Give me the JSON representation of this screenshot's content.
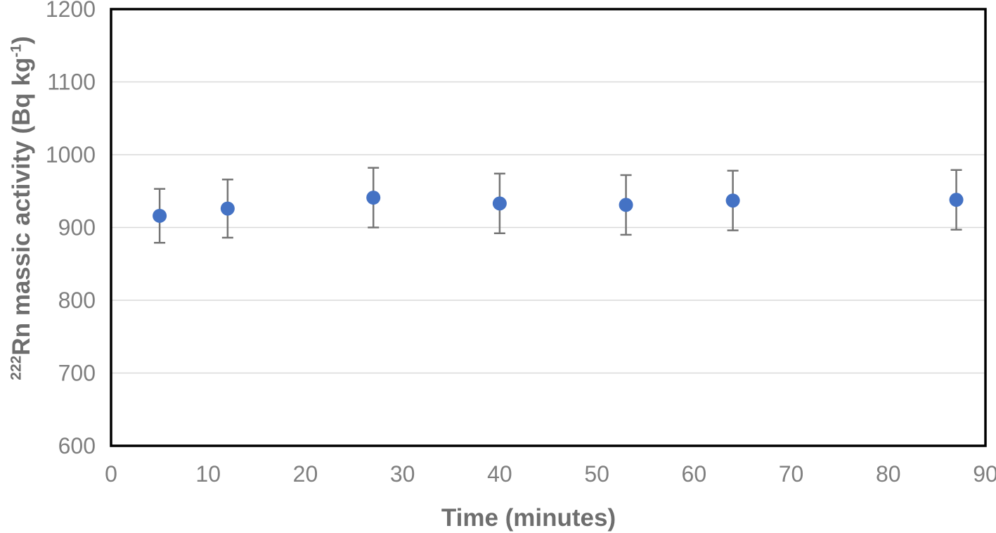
{
  "chart_data": {
    "type": "scatter",
    "title": "",
    "xlabel": "Time (minutes)",
    "ylabel": "²²²Rn massic activity (Bq kg⁻¹)",
    "ylabel_parts": {
      "isotope_mass": "222",
      "main": "Rn massic activity (Bq kg",
      "exponent": "-1",
      "close": ")"
    },
    "xlim": [
      0,
      90
    ],
    "ylim": [
      600,
      1200
    ],
    "x_ticks": [
      0,
      10,
      20,
      30,
      40,
      50,
      60,
      70,
      80,
      90
    ],
    "y_ticks": [
      600,
      700,
      800,
      900,
      1000,
      1100,
      1200
    ],
    "grid": "horizontal-only",
    "legend": "none",
    "series": [
      {
        "name": "Rn-222 massic activity",
        "marker": "circle",
        "points": [
          {
            "x": 5,
            "y": 916,
            "error": 37
          },
          {
            "x": 12,
            "y": 926,
            "error": 40
          },
          {
            "x": 27,
            "y": 941,
            "error": 41
          },
          {
            "x": 40,
            "y": 933,
            "error": 41
          },
          {
            "x": 53,
            "y": 931,
            "error": 41
          },
          {
            "x": 64,
            "y": 937,
            "error": 41
          },
          {
            "x": 87,
            "y": 938,
            "error": 41
          }
        ]
      }
    ],
    "colors": {
      "marker_fill": "#4472C4",
      "error_bar": "#757575",
      "gridline": "#D9D9D9",
      "plot_border": "#000000",
      "tick_label": "#7F7F7F",
      "axis_title": "#6E6E6E"
    }
  }
}
